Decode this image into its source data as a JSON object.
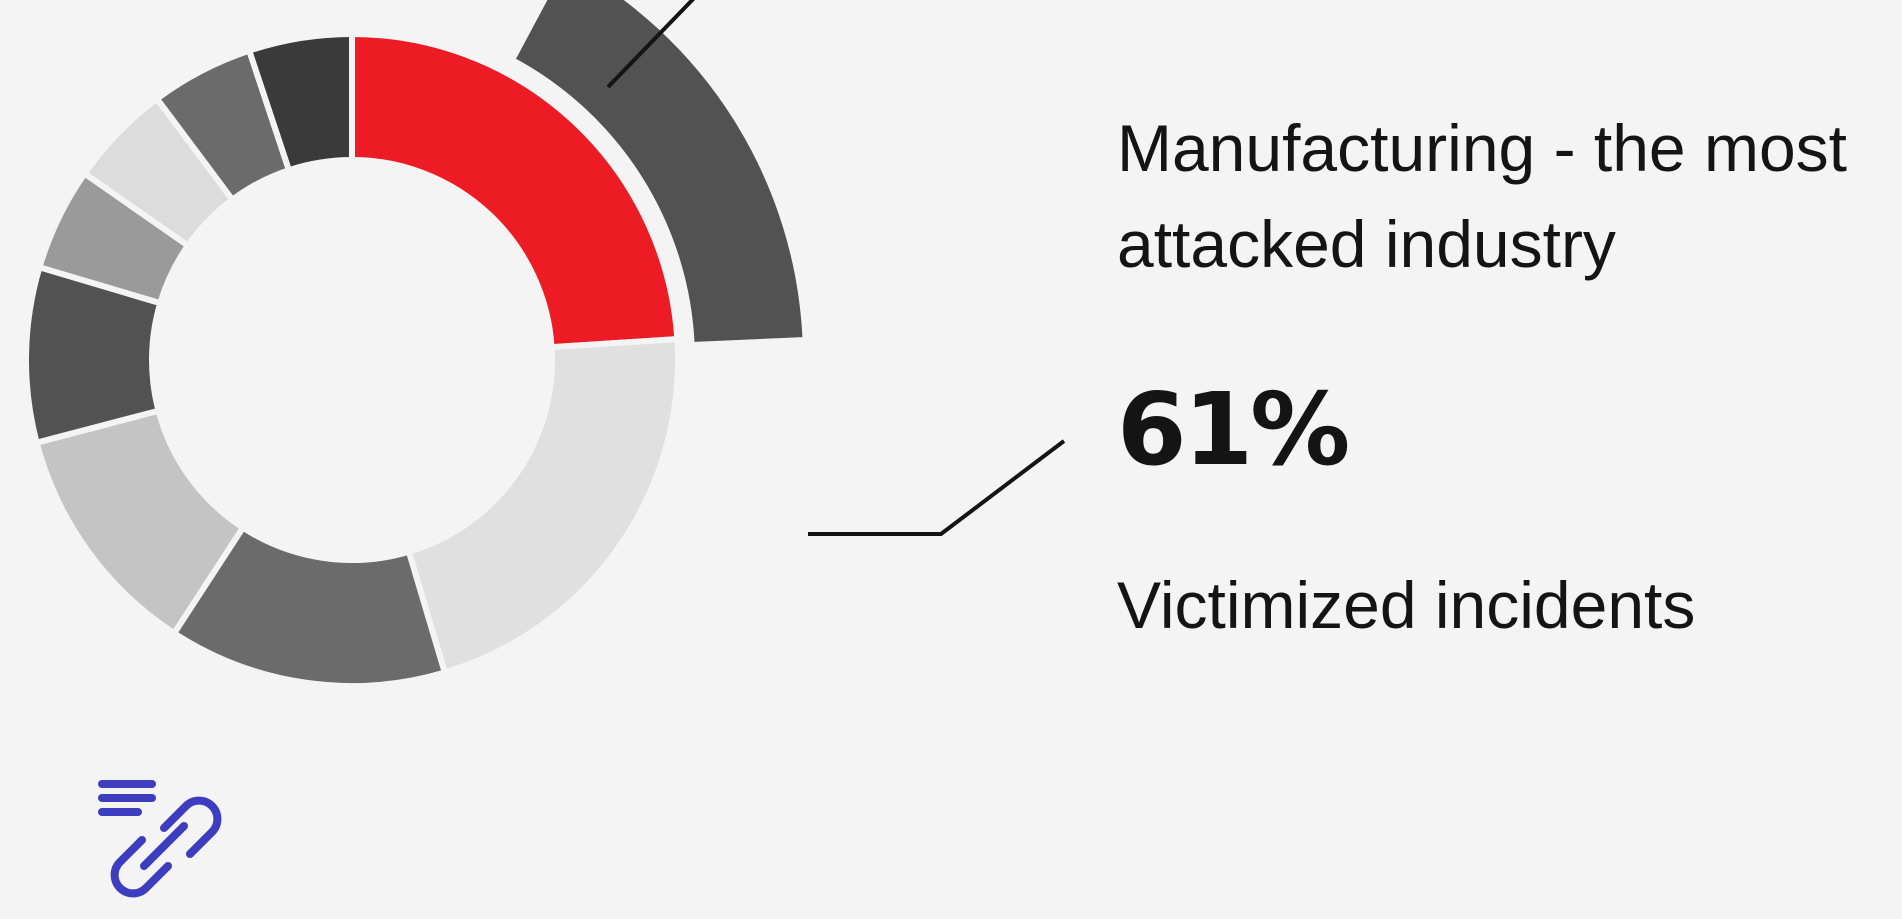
{
  "chart_data": {
    "type": "pie",
    "variant": "donut",
    "exploded_segment": "Manufacturing",
    "segments": [
      {
        "label": "Manufacturing",
        "value": 23.5,
        "color": "#ed1c24",
        "highlight": true
      },
      {
        "label": "",
        "value": 21.0,
        "color": "#e0e0e0"
      },
      {
        "label": "",
        "value": 13.5,
        "color": "#6b6b6b"
      },
      {
        "label": "",
        "value": 11.5,
        "color": "#c4c4c4"
      },
      {
        "label": "",
        "value": 8.5,
        "color": "#525252"
      },
      {
        "label": "",
        "value": 5.0,
        "color": "#9a9a9a"
      },
      {
        "label": "",
        "value": 5.0,
        "color": "#dcdcdc"
      },
      {
        "label": "",
        "value": 5.0,
        "color": "#6b6b6b"
      },
      {
        "label": "",
        "value": 5.0,
        "color": "#3a3a3a"
      }
    ]
  },
  "callout": {
    "headline": "Manufacturing - the most attacked industry",
    "stat_value": "61%",
    "stat_label": "Victimized incidents"
  },
  "icons": {
    "link": "link-list-icon",
    "link_color": "#3d3dbf"
  },
  "colors": {
    "accent": "#ed1c24",
    "exploded_arc": "#525252",
    "background": "#f4f4f4"
  }
}
